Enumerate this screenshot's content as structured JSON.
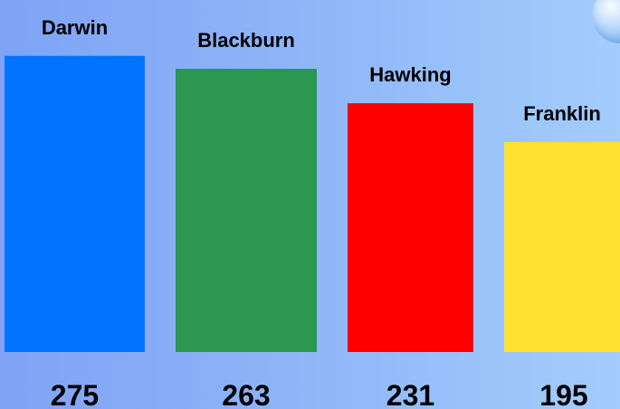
{
  "chart_data": {
    "type": "bar",
    "categories": [
      "Darwin",
      "Blackburn",
      "Hawking",
      "Franklin"
    ],
    "values": [
      275,
      263,
      231,
      195
    ],
    "colors": [
      "#0074ff",
      "#2b9750",
      "#ff0000",
      "#ffe033"
    ],
    "title": "",
    "xlabel": "",
    "ylabel": "",
    "grid": false,
    "legend": "none"
  }
}
